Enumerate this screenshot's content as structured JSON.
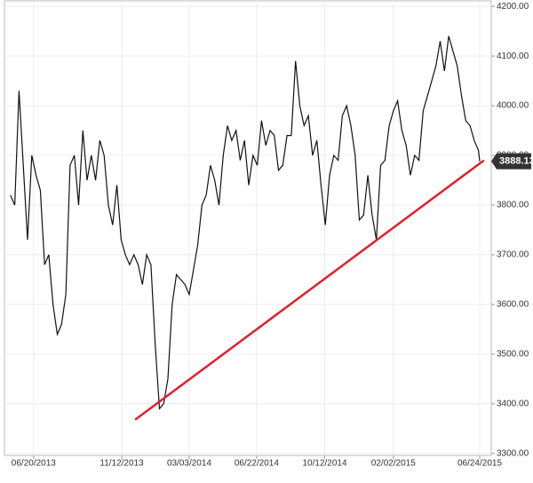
{
  "chart_data": {
    "type": "line",
    "x": [
      "05/13/2013",
      "05/20/2013",
      "05/27/2013",
      "06/03/2013",
      "06/10/2013",
      "06/17/2013",
      "06/24/2013",
      "07/01/2013",
      "07/08/2013",
      "07/15/2013",
      "07/22/2013",
      "07/29/2013",
      "08/05/2013",
      "08/12/2013",
      "08/19/2013",
      "08/26/2013",
      "09/02/2013",
      "09/09/2013",
      "09/16/2013",
      "09/23/2013",
      "09/30/2013",
      "10/07/2013",
      "10/14/2013",
      "10/21/2013",
      "10/28/2013",
      "11/04/2013",
      "11/11/2013",
      "11/18/2013",
      "11/25/2013",
      "12/02/2013",
      "12/09/2013",
      "12/16/2013",
      "12/23/2013",
      "12/30/2013",
      "01/06/2014",
      "01/13/2014",
      "01/20/2014",
      "01/27/2014",
      "02/03/2014",
      "02/10/2014",
      "02/17/2014",
      "02/24/2014",
      "03/03/2014",
      "03/10/2014",
      "03/17/2014",
      "03/24/2014",
      "03/31/2014",
      "04/07/2014",
      "04/14/2014",
      "04/21/2014",
      "04/28/2014",
      "05/05/2014",
      "05/12/2014",
      "05/19/2014",
      "05/26/2014",
      "06/02/2014",
      "06/09/2014",
      "06/16/2014",
      "06/23/2014",
      "06/30/2014",
      "07/07/2014",
      "07/14/2014",
      "07/21/2014",
      "07/28/2014",
      "08/04/2014",
      "08/11/2014",
      "08/18/2014",
      "08/25/2014",
      "09/01/2014",
      "09/08/2014",
      "09/15/2014",
      "09/22/2014",
      "09/29/2014",
      "10/06/2014",
      "10/13/2014",
      "10/20/2014",
      "10/27/2014",
      "11/03/2014",
      "11/10/2014",
      "11/17/2014",
      "11/24/2014",
      "12/01/2014",
      "12/08/2014",
      "12/15/2014",
      "12/22/2014",
      "12/29/2014",
      "01/05/2015",
      "01/12/2015",
      "01/19/2015",
      "01/26/2015",
      "02/02/2015",
      "02/09/2015",
      "02/16/2015",
      "02/23/2015",
      "03/02/2015",
      "03/09/2015",
      "03/16/2015",
      "03/23/2015",
      "03/30/2015",
      "04/06/2015",
      "04/13/2015",
      "04/20/2015",
      "04/27/2015",
      "05/04/2015",
      "05/11/2015",
      "05/18/2015",
      "05/25/2015",
      "06/01/2015",
      "06/08/2015",
      "06/15/2015",
      "06/22/2015",
      "06/24/2015"
    ],
    "series": [
      {
        "color": "#111111",
        "values": [
          3820,
          3800,
          4030,
          3880,
          3730,
          3900,
          3860,
          3830,
          3680,
          3700,
          3600,
          3540,
          3560,
          3620,
          3880,
          3900,
          3800,
          3950,
          3850,
          3900,
          3850,
          3930,
          3900,
          3800,
          3760,
          3840,
          3730,
          3700,
          3680,
          3700,
          3680,
          3640,
          3700,
          3680,
          3520,
          3390,
          3400,
          3450,
          3600,
          3660,
          3650,
          3640,
          3620,
          3670,
          3720,
          3800,
          3820,
          3880,
          3850,
          3800,
          3900,
          3960,
          3930,
          3950,
          3890,
          3930,
          3840,
          3900,
          3880,
          3970,
          3920,
          3950,
          3940,
          3870,
          3880,
          3940,
          3940,
          4090,
          4000,
          3960,
          3980,
          3900,
          3930,
          3840,
          3760,
          3860,
          3900,
          3890,
          3980,
          4000,
          3960,
          3900,
          3770,
          3780,
          3860,
          3780,
          3730,
          3880,
          3890,
          3960,
          3990,
          4010,
          3950,
          3920,
          3860,
          3900,
          3890,
          3990,
          4020,
          4050,
          4080,
          4130,
          4070,
          4140,
          4110,
          4080,
          4020,
          3970,
          3960,
          3930,
          3910,
          3888.13
        ]
      }
    ],
    "trendline": {
      "color": "#e0202c",
      "x": [
        "12/04/2013",
        "07/01/2015"
      ],
      "values": [
        3368,
        3890
      ]
    },
    "xlim": [
      "05/03/2013",
      "07/13/2015"
    ],
    "xticks": [
      "06/20/2013",
      "11/12/2013",
      "03/03/2014",
      "06/22/2014",
      "10/12/2014",
      "02/02/2015",
      "06/24/2015"
    ],
    "ylim": [
      3296,
      4211
    ],
    "yticks": [
      {
        "value": 3300,
        "label": "3300.00"
      },
      {
        "value": 3400,
        "label": "3400.00"
      },
      {
        "value": 3500,
        "label": "3500.00"
      },
      {
        "value": 3600,
        "label": "3600.00"
      },
      {
        "value": 3700,
        "label": "3700.00"
      },
      {
        "value": 3800,
        "label": "3800.00"
      },
      {
        "value": 3900,
        "label": "3900.00"
      },
      {
        "value": 4000,
        "label": "4000.00"
      },
      {
        "value": 4100,
        "label": "4100.00"
      },
      {
        "value": 4200,
        "label": "4200.00"
      }
    ],
    "grid": true
  }
}
